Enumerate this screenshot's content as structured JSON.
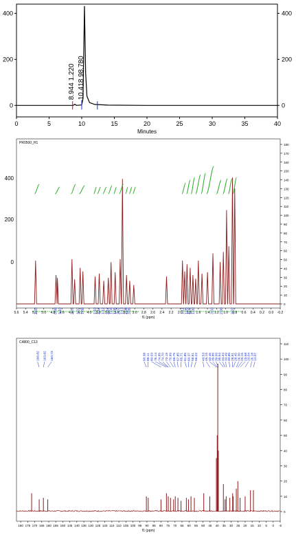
{
  "chart_data": [
    {
      "type": "line",
      "xlabel": "Minutes",
      "ylim": [
        -50,
        440
      ],
      "xlim": [
        0,
        40
      ],
      "xticks": [
        0,
        5,
        10,
        15,
        20,
        25,
        30,
        35,
        40
      ],
      "yticks": [
        0,
        200,
        400
      ],
      "grid": false,
      "trace_color": "#000000",
      "marker_colors": [
        "#e00000",
        "#1a33cc"
      ],
      "peaks": [
        {
          "rt": 8.944,
          "height": 5,
          "label": "8.944",
          "area_label": "1.220"
        },
        {
          "rt": 10.418,
          "height": 432,
          "label": "10.418",
          "area_label": "98.780"
        }
      ],
      "baseline_x": [
        0,
        8.7,
        8.944,
        9.2,
        10.0,
        10.2,
        10.418,
        10.6,
        10.8,
        11.2,
        12,
        14,
        20,
        40
      ],
      "baseline_y": [
        0,
        0,
        5,
        0,
        2,
        30,
        432,
        140,
        40,
        12,
        4,
        1,
        0,
        0
      ]
    },
    {
      "type": "line",
      "title": "PR0500_H1",
      "xlabel": "f1 (ppm)",
      "xlim": [
        5.6,
        -0.2
      ],
      "xticks": [
        "5.6",
        "5.4",
        "5.2",
        "5.0",
        "4.8",
        "4.6",
        "4.4",
        "4.2",
        "4.0",
        "3.8",
        "3.6",
        "3.4",
        "3.2",
        "3.0",
        "2.8",
        "2.6",
        "2.4",
        "2.2",
        "2.0",
        "1.8",
        "1.6",
        "1.4",
        "1.2",
        "1.0",
        "0.8",
        "0.6",
        "0.4",
        "0.2",
        "0.0",
        "-0.2"
      ],
      "left_yticks": [
        "400",
        "200",
        "0"
      ],
      "right_yticks": [
        "180",
        "170",
        "160",
        "150",
        "140",
        "130",
        "120",
        "110",
        "100",
        "90",
        "80",
        "70",
        "60",
        "50",
        "40",
        "30",
        "20",
        "10",
        "0"
      ],
      "trace_color": "#8b1a1a",
      "integral_color": "#22aa22",
      "integration_labels": [
        "2.03",
        "0.98",
        "1.10",
        "2.07",
        "1.07",
        "1.08",
        "1.10",
        "2.12",
        "1.12",
        "2.12",
        "1.04",
        "1.05",
        "2.07",
        "1.13",
        "2.08",
        "3.09",
        "1.11",
        "1.05",
        "4.02",
        "1.00",
        "3.03",
        "2.00",
        "3.07"
      ],
      "peaks_ppm": [
        5.18,
        4.73,
        4.7,
        4.38,
        4.32,
        4.2,
        4.14,
        3.87,
        3.78,
        3.68,
        3.58,
        3.52,
        3.43,
        3.32,
        3.27,
        3.18,
        3.11,
        3.02,
        2.3,
        1.95,
        1.9,
        1.85,
        1.78,
        1.72,
        1.66,
        1.6,
        1.52,
        1.4,
        1.28,
        1.12,
        1.05,
        0.98,
        0.93,
        0.85,
        0.8
      ],
      "peaks_height": [
        60,
        40,
        36,
        62,
        34,
        50,
        45,
        38,
        42,
        32,
        36,
        58,
        44,
        62,
        173,
        40,
        32,
        26,
        38,
        60,
        45,
        55,
        50,
        40,
        35,
        60,
        42,
        44,
        70,
        58,
        72,
        130,
        80,
        175,
        160
      ]
    },
    {
      "type": "line",
      "title": "C4800_C13",
      "xlabel": "f1 (ppm)",
      "xlim": [
        183,
        -5
      ],
      "xticks": [
        "180",
        "175",
        "170",
        "165",
        "160",
        "155",
        "150",
        "145",
        "140",
        "135",
        "130",
        "125",
        "120",
        "115",
        "110",
        "105",
        "100",
        "95",
        "90",
        "85",
        "80",
        "75",
        "70",
        "65",
        "60",
        "55",
        "50",
        "45",
        "40",
        "35",
        "30",
        "25",
        "20",
        "15",
        "10",
        "5",
        "0",
        "-5"
      ],
      "right_yticks": [
        "110",
        "100",
        "90",
        "80",
        "70",
        "60",
        "50",
        "40",
        "30",
        "20",
        "10",
        "0"
      ],
      "trace_color": "#8b1a1a",
      "shift_color": "#1a33cc",
      "shift_labels": [
        "166.82",
        "163.82",
        "160.73",
        "90.38",
        "89.11",
        "80.03",
        "76.14",
        "74.85",
        "74.70",
        "73.19",
        "70.99",
        "69.75",
        "67.85",
        "65.71",
        "61.85",
        "60.37",
        "58.61",
        "56.22",
        "49.53",
        "45.19",
        "40.45",
        "39.86",
        "39.09",
        "35.54",
        "34.34",
        "33.49",
        "30.86",
        "28.91",
        "28.45",
        "26.30",
        "25.15",
        "23.58",
        "20.04",
        "16.18",
        "14.07"
      ],
      "peaks_ppm": [
        172.2,
        166.8,
        163.8,
        160.7,
        90.4,
        89.1,
        80.0,
        76.1,
        74.8,
        73.2,
        71.0,
        69.8,
        67.9,
        65.7,
        61.9,
        60.4,
        58.6,
        56.2,
        49.5,
        45.2,
        40.5,
        39.9,
        39.5,
        39.1,
        35.5,
        34.3,
        33.5,
        30.9,
        28.9,
        28.5,
        26.3,
        25.2,
        23.6,
        20.0,
        16.2,
        14.1
      ],
      "peaks_height": [
        12,
        8,
        9,
        8,
        10,
        9,
        8,
        12,
        10,
        9,
        8,
        10,
        9,
        7,
        9,
        8,
        10,
        9,
        12,
        10,
        35,
        50,
        97,
        40,
        18,
        8,
        10,
        9,
        12,
        10,
        15,
        20,
        9,
        10,
        14,
        14
      ]
    }
  ]
}
